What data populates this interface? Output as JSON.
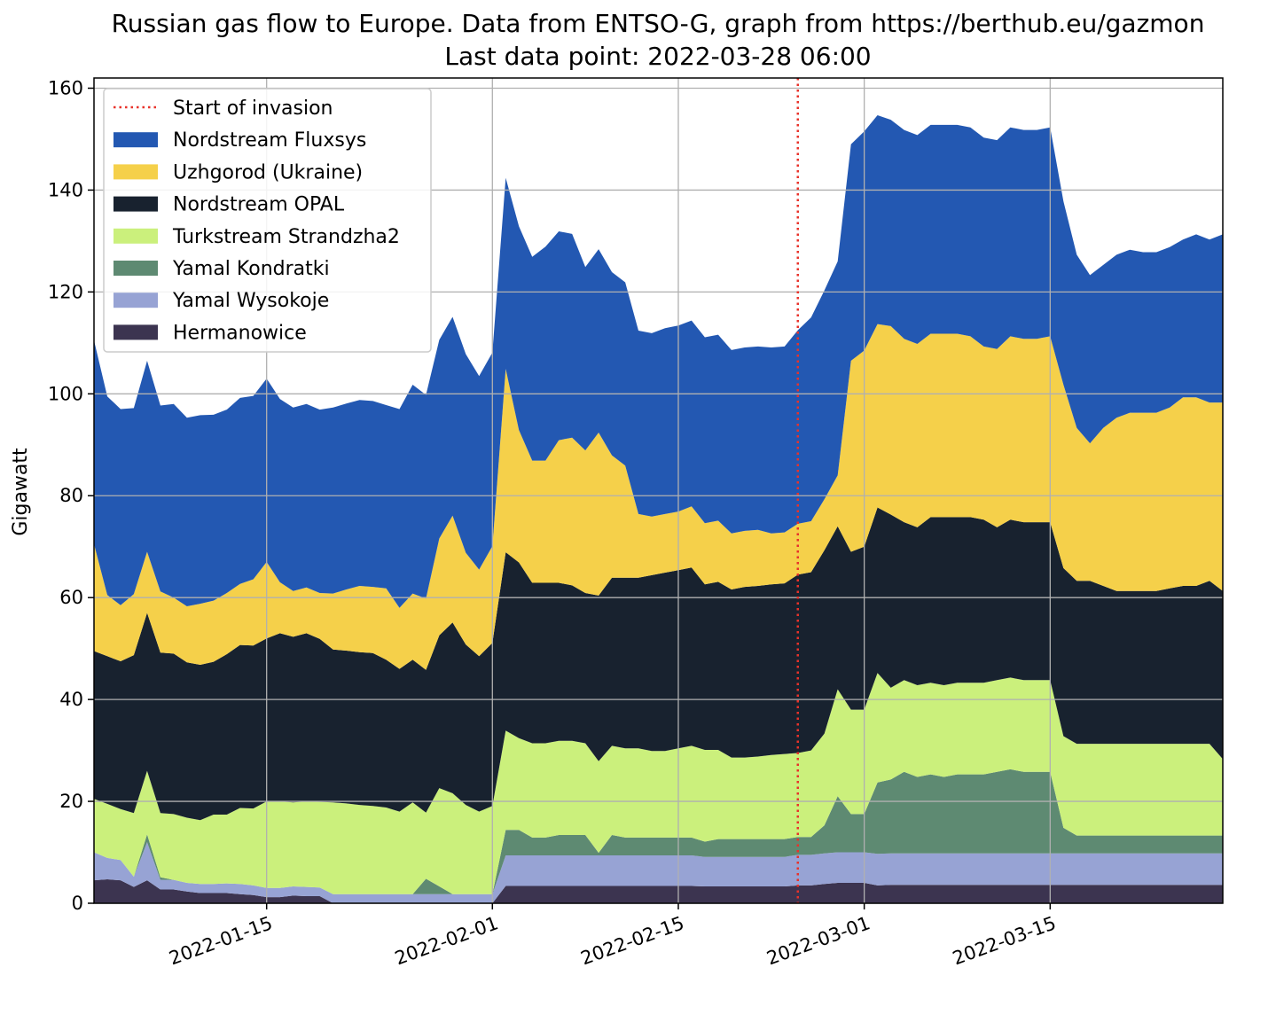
{
  "chart_data": {
    "type": "area",
    "stacked": true,
    "title": "Russian gas flow to Europe. Data from ENTSO-G, graph from https://berthub.eu/gazmon",
    "subtitle": "Last data point: 2022-03-28 06:00",
    "xlabel": "",
    "ylabel": "Gigawatt",
    "xlim": [
      "2022-01-02",
      "2022-03-28"
    ],
    "ylim": [
      0,
      162
    ],
    "yticks": [
      0,
      20,
      40,
      60,
      80,
      100,
      120,
      140,
      160
    ],
    "xticks": [
      "2022-01-15",
      "2022-02-01",
      "2022-02-15",
      "2022-03-01",
      "2022-03-15"
    ],
    "grid": true,
    "legend_position": "top-left",
    "invasion_marker": {
      "label": "Start of invasion",
      "date": "2022-02-24",
      "color": "#e8322a"
    },
    "x": [
      "2022-01-02",
      "2022-01-03",
      "2022-01-04",
      "2022-01-05",
      "2022-01-06",
      "2022-01-07",
      "2022-01-08",
      "2022-01-09",
      "2022-01-10",
      "2022-01-11",
      "2022-01-12",
      "2022-01-13",
      "2022-01-14",
      "2022-01-15",
      "2022-01-16",
      "2022-01-17",
      "2022-01-18",
      "2022-01-19",
      "2022-01-20",
      "2022-01-21",
      "2022-01-22",
      "2022-01-23",
      "2022-01-24",
      "2022-01-25",
      "2022-01-26",
      "2022-01-27",
      "2022-01-28",
      "2022-01-29",
      "2022-01-30",
      "2022-01-31",
      "2022-02-01",
      "2022-02-02",
      "2022-02-03",
      "2022-02-04",
      "2022-02-05",
      "2022-02-06",
      "2022-02-07",
      "2022-02-08",
      "2022-02-09",
      "2022-02-10",
      "2022-02-11",
      "2022-02-12",
      "2022-02-13",
      "2022-02-14",
      "2022-02-15",
      "2022-02-16",
      "2022-02-17",
      "2022-02-18",
      "2022-02-19",
      "2022-02-20",
      "2022-02-21",
      "2022-02-22",
      "2022-02-23",
      "2022-02-24",
      "2022-02-25",
      "2022-02-26",
      "2022-02-27",
      "2022-02-28",
      "2022-03-01",
      "2022-03-02",
      "2022-03-03",
      "2022-03-04",
      "2022-03-05",
      "2022-03-06",
      "2022-03-07",
      "2022-03-08",
      "2022-03-09",
      "2022-03-10",
      "2022-03-11",
      "2022-03-12",
      "2022-03-13",
      "2022-03-14",
      "2022-03-15",
      "2022-03-16",
      "2022-03-17",
      "2022-03-18",
      "2022-03-19",
      "2022-03-20",
      "2022-03-21",
      "2022-03-22",
      "2022-03-23",
      "2022-03-24",
      "2022-03-25",
      "2022-03-26",
      "2022-03-27",
      "2022-03-28"
    ],
    "series": [
      {
        "name": "Hermanowice",
        "color": "#3c3450",
        "values": [
          4.5,
          4.7,
          4.5,
          3.2,
          4.5,
          2.7,
          2.7,
          2.3,
          2.0,
          2.0,
          2.0,
          1.8,
          1.6,
          1.2,
          1.2,
          1.5,
          1.4,
          1.4,
          0,
          0,
          0,
          0,
          0,
          0,
          0,
          0,
          0,
          0,
          0,
          0,
          0,
          3.4,
          3.4,
          3.4,
          3.4,
          3.4,
          3.4,
          3.4,
          3.4,
          3.4,
          3.4,
          3.4,
          3.4,
          3.4,
          3.4,
          3.4,
          3.3,
          3.3,
          3.3,
          3.3,
          3.3,
          3.3,
          3.3,
          3.5,
          3.5,
          3.8,
          4.0,
          4.0,
          4.0,
          3.5,
          3.6,
          3.6,
          3.6,
          3.6,
          3.6,
          3.6,
          3.6,
          3.6,
          3.6,
          3.6,
          3.6,
          3.6,
          3.6,
          3.6,
          3.6,
          3.6,
          3.6,
          3.6,
          3.6,
          3.6,
          3.6,
          3.6,
          3.6,
          3.6,
          3.6,
          3.6
        ]
      },
      {
        "name": "Yamal Wysokoje",
        "color": "#97a3d4",
        "values": [
          5.5,
          4.2,
          4.0,
          2.0,
          7.5,
          1.9,
          1.9,
          1.7,
          1.8,
          1.8,
          1.9,
          2.0,
          1.9,
          1.8,
          1.8,
          1.8,
          1.8,
          1.7,
          1.8,
          1.8,
          1.8,
          1.8,
          1.8,
          1.8,
          1.8,
          1.8,
          1.8,
          1.8,
          1.8,
          1.8,
          1.8,
          6.0,
          6.0,
          6.0,
          6.0,
          6.0,
          6.0,
          6.0,
          6.0,
          6.0,
          6.0,
          6.0,
          6.0,
          6.0,
          6.0,
          6.0,
          5.8,
          5.8,
          5.8,
          5.8,
          5.8,
          5.8,
          5.8,
          6.0,
          6.0,
          6.0,
          6.0,
          6.0,
          6.0,
          6.2,
          6.2,
          6.2,
          6.2,
          6.2,
          6.2,
          6.2,
          6.2,
          6.2,
          6.2,
          6.2,
          6.2,
          6.2,
          6.2,
          6.2,
          6.2,
          6.2,
          6.2,
          6.2,
          6.2,
          6.2,
          6.2,
          6.2,
          6.2,
          6.2,
          6.2,
          6.2
        ]
      },
      {
        "name": "Yamal Kondratki",
        "color": "#5e8a72",
        "values": [
          0,
          0,
          0,
          0,
          1.5,
          0.5,
          0,
          0,
          0,
          0,
          0,
          0,
          0,
          0,
          0,
          0,
          0,
          0,
          0,
          0,
          0,
          0,
          0,
          0,
          0,
          3.0,
          1.5,
          0,
          0,
          0,
          0,
          5.0,
          5.0,
          3.5,
          3.5,
          4.0,
          4.0,
          4.0,
          0.5,
          4.0,
          3.5,
          3.5,
          3.5,
          3.5,
          3.5,
          3.5,
          3.0,
          3.5,
          3.5,
          3.5,
          3.5,
          3.5,
          3.5,
          3.5,
          3.5,
          5.5,
          11.0,
          7.5,
          7.5,
          14.0,
          14.5,
          16.0,
          15.0,
          15.5,
          15.0,
          15.5,
          15.5,
          15.5,
          16.0,
          16.5,
          16.0,
          16.0,
          16.0,
          5.0,
          3.5,
          3.5,
          3.5,
          3.5,
          3.5,
          3.5,
          3.5,
          3.5,
          3.5,
          3.5,
          3.5,
          3.5
        ]
      },
      {
        "name": "Turkstream Strandzha2",
        "color": "#cbf07c",
        "values": [
          10.5,
          10.6,
          10.0,
          12.5,
          12.5,
          12.6,
          12.9,
          12.8,
          12.5,
          13.6,
          13.5,
          14.9,
          15.1,
          17.0,
          17.0,
          16.5,
          16.8,
          16.8,
          18.0,
          17.8,
          17.5,
          17.3,
          17.0,
          16.2,
          18.0,
          13.0,
          19.3,
          19.8,
          17.5,
          16.2,
          17.3,
          19.5,
          18.0,
          18.5,
          18.5,
          18.5,
          18.5,
          18.0,
          18.0,
          17.5,
          17.5,
          17.5,
          17.0,
          17.0,
          17.5,
          18.0,
          18.0,
          17.5,
          16.0,
          16.0,
          16.2,
          16.5,
          16.7,
          16.5,
          17.0,
          18.0,
          21.0,
          20.5,
          20.5,
          21.5,
          18.0,
          18.0,
          18.0,
          18.0,
          18.0,
          18.0,
          18.0,
          18.0,
          18.0,
          18.0,
          18.0,
          18.0,
          18.0,
          18.0,
          18.0,
          18.0,
          18.0,
          18.0,
          18.0,
          18.0,
          18.0,
          18.0,
          18.0,
          18.0,
          18.0,
          15.0
        ]
      },
      {
        "name": "Nordstream OPAL",
        "color": "#18222f",
        "values": [
          29.0,
          29.0,
          29.0,
          31.0,
          31.0,
          31.5,
          31.5,
          30.5,
          30.5,
          30.0,
          31.5,
          32.0,
          32.0,
          32.0,
          33.0,
          32.5,
          33.0,
          32.0,
          30.0,
          30.0,
          30.0,
          30.0,
          29.0,
          28.0,
          28.0,
          28.0,
          30.0,
          33.5,
          31.5,
          30.5,
          32.0,
          35.0,
          34.5,
          31.5,
          31.5,
          31.0,
          30.5,
          29.5,
          32.5,
          33.0,
          33.5,
          33.5,
          34.5,
          35.0,
          35.0,
          35.0,
          32.5,
          33.0,
          33.0,
          33.5,
          33.5,
          33.5,
          33.5,
          35.0,
          35.0,
          36.0,
          32.0,
          31.0,
          32.0,
          32.5,
          34.0,
          31.0,
          31.0,
          32.5,
          33.0,
          32.5,
          32.5,
          32.0,
          30.0,
          31.0,
          31.0,
          31.0,
          31.0,
          33.0,
          32.0,
          32.0,
          31.0,
          30.0,
          30.0,
          30.0,
          30.0,
          30.5,
          31.0,
          31.0,
          32.0,
          33.0
        ]
      },
      {
        "name": "Uzhgorod (Ukraine)",
        "color": "#f5d04a",
        "values": [
          21.0,
          12.0,
          11.0,
          12.0,
          12.0,
          12.0,
          11.0,
          11.0,
          12.0,
          12.0,
          12.0,
          12.0,
          13.0,
          15.0,
          10.0,
          9.0,
          9.0,
          9.0,
          11.0,
          12.0,
          13.0,
          13.0,
          14.0,
          12.0,
          13.0,
          14.0,
          19.0,
          21.0,
          18.0,
          17.0,
          19.0,
          36.0,
          26.0,
          24.0,
          24.0,
          28.0,
          29.0,
          28.0,
          32.0,
          24.0,
          22.0,
          12.5,
          11.5,
          11.5,
          11.5,
          12.0,
          12.0,
          12.0,
          11.0,
          11.0,
          11.0,
          10.0,
          10.0,
          10.0,
          10.0,
          10.0,
          10.0,
          37.5,
          38.5,
          36.0,
          37.0,
          36.0,
          36.0,
          36.0,
          36.0,
          36.0,
          35.5,
          34.0,
          35.0,
          36.0,
          36.0,
          36.0,
          36.5,
          36.0,
          30.0,
          27.0,
          31.0,
          34.0,
          35.0,
          35.0,
          35.0,
          35.5,
          37.0,
          37.0,
          35.0,
          37.0
        ]
      },
      {
        "name": "Nordstream Fluxsys",
        "color": "#2358b2",
        "values": [
          40.0,
          39.0,
          38.5,
          36.5,
          37.5,
          36.5,
          38.0,
          37.0,
          37.0,
          36.5,
          36.0,
          36.5,
          36.0,
          36.0,
          36.0,
          36.0,
          36.0,
          36.0,
          36.5,
          36.5,
          36.5,
          36.5,
          36.0,
          39.0,
          41.0,
          40.0,
          39.0,
          39.0,
          39.0,
          38.0,
          38.0,
          37.5,
          40.0,
          40.0,
          42.0,
          41.0,
          40.0,
          36.0,
          36.0,
          36.0,
          36.0,
          36.0,
          36.0,
          36.5,
          36.5,
          36.5,
          36.5,
          36.5,
          36.0,
          36.0,
          36.0,
          36.5,
          36.5,
          38.0,
          40.0,
          41.0,
          42.0,
          42.5,
          43.0,
          41.0,
          40.5,
          41.0,
          41.0,
          41.0,
          41.0,
          41.0,
          41.0,
          41.0,
          41.0,
          41.0,
          41.0,
          41.0,
          41.0,
          36.0,
          34.0,
          33.0,
          32.0,
          32.0,
          32.0,
          31.5,
          31.5,
          31.5,
          31.0,
          32.0,
          32.0,
          33.0
        ]
      }
    ]
  }
}
